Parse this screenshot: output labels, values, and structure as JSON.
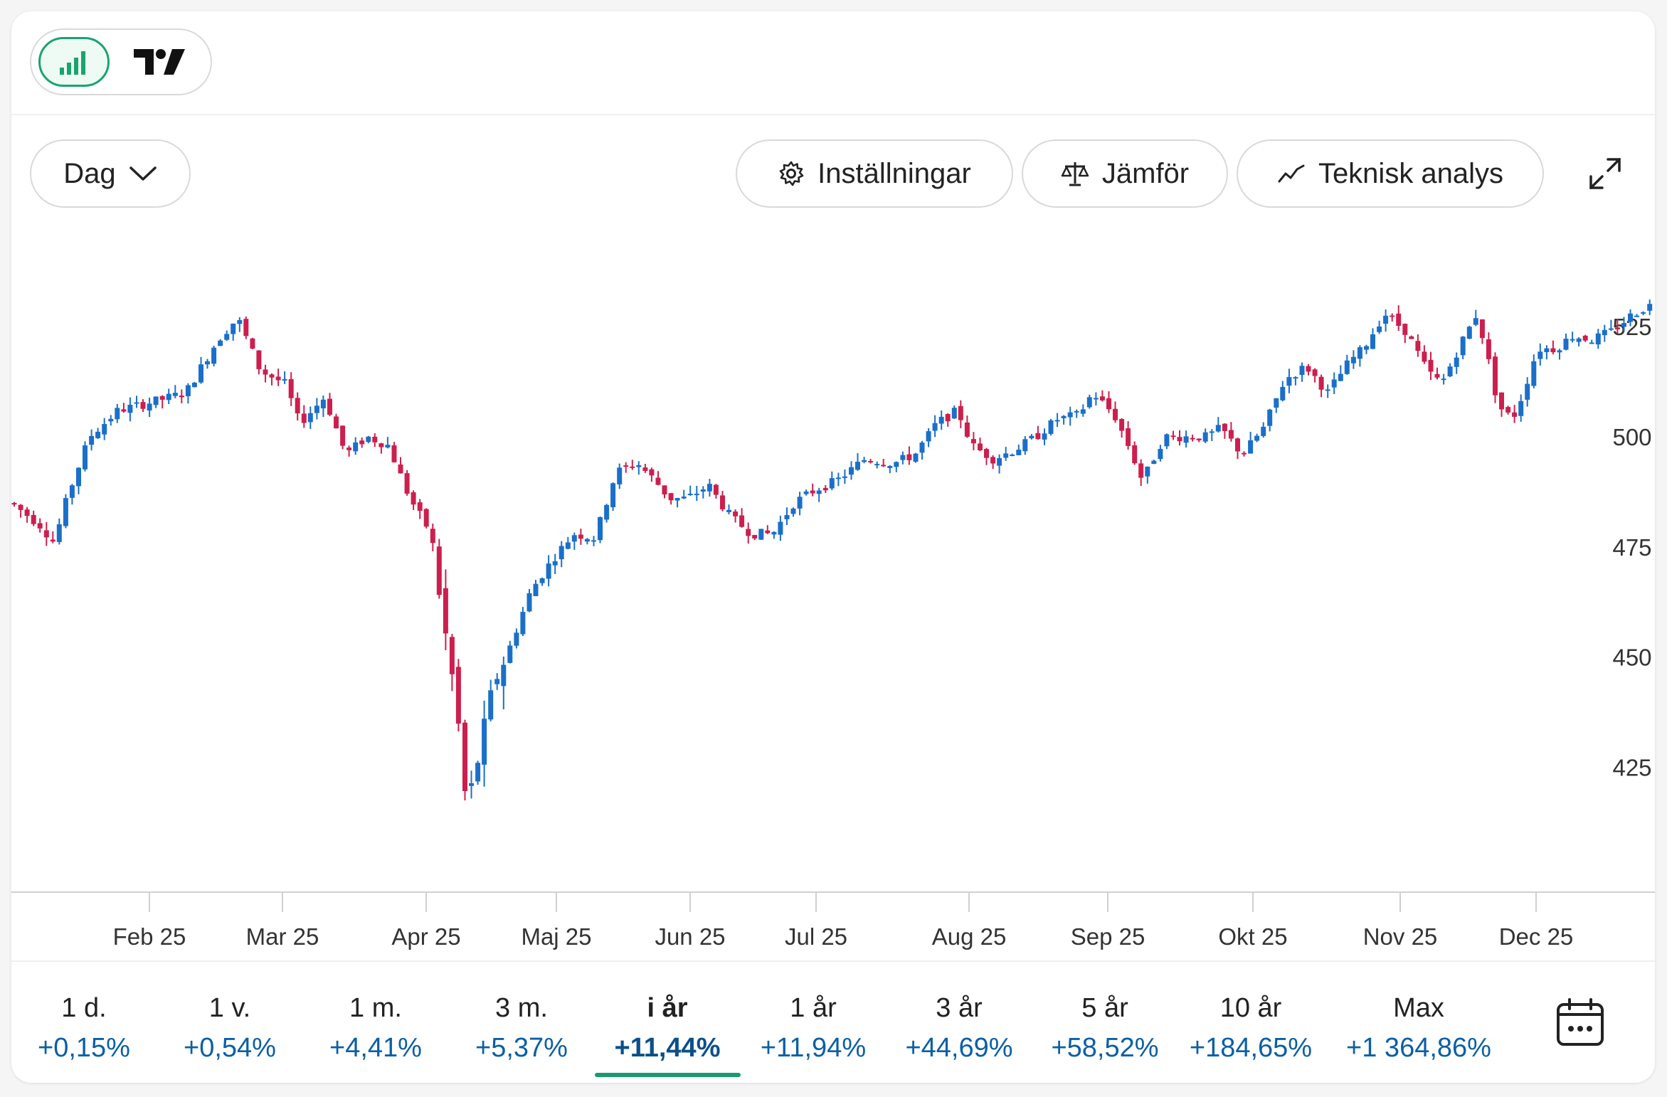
{
  "toolbar": {
    "interval_label": "Dag",
    "settings_label": "Inställningar",
    "compare_label": "Jämför",
    "technical_label": "Teknisk analys"
  },
  "colors": {
    "up": "#1a6fc9",
    "down": "#cc1f4d",
    "accent": "#1a9a72",
    "positive": "#0b5fa5"
  },
  "icons": {
    "chart_view": "bar-chart-icon",
    "tradingview": "tradingview-logo-icon",
    "chevron": "chevron-down-icon",
    "settings": "gear-icon",
    "compare": "scale-icon",
    "technical": "trend-line-icon",
    "expand": "expand-icon",
    "calendar": "calendar-icon"
  },
  "periods": [
    {
      "label": "1 d.",
      "change": "+0,15%",
      "active": false
    },
    {
      "label": "1 v.",
      "change": "+0,54%",
      "active": false
    },
    {
      "label": "1 m.",
      "change": "+4,41%",
      "active": false
    },
    {
      "label": "3 m.",
      "change": "+5,37%",
      "active": false
    },
    {
      "label": "i år",
      "change": "+11,44%",
      "active": true
    },
    {
      "label": "1 år",
      "change": "+11,94%",
      "active": false
    },
    {
      "label": "3 år",
      "change": "+44,69%",
      "active": false
    },
    {
      "label": "5 år",
      "change": "+58,52%",
      "active": false
    },
    {
      "label": "10 år",
      "change": "+184,65%",
      "active": false
    },
    {
      "label": "Max",
      "change": "+1 364,86%",
      "active": false
    }
  ],
  "chart_data": {
    "type": "candlestick",
    "x_tick_labels": [
      "Feb 25",
      "Mar 25",
      "Apr 25",
      "Maj 25",
      "Jun 25",
      "Jul 25",
      "Aug 25",
      "Sep 25",
      "Okt 25",
      "Nov 25",
      "Dec 25"
    ],
    "y_ticks": [
      425,
      450,
      475,
      500,
      525
    ],
    "ylim": [
      405,
      550
    ],
    "grid": false,
    "y_axis_position": "right",
    "approx_close_path": [
      {
        "month": "Jan 25",
        "close": 485
      },
      {
        "month": "Feb 25",
        "close": 508
      },
      {
        "month": "Feb 25 peak",
        "close": 525
      },
      {
        "month": "Mar 25",
        "close": 505
      },
      {
        "month": "Mar 25 end",
        "close": 480
      },
      {
        "month": "Apr 25 low",
        "close": 412
      },
      {
        "month": "Maj 25",
        "close": 476
      },
      {
        "month": "Jun 25",
        "close": 488
      },
      {
        "month": "Jul 25",
        "close": 488
      },
      {
        "month": "Aug 25",
        "close": 507
      },
      {
        "month": "Sep 25",
        "close": 503
      },
      {
        "month": "Okt 25",
        "close": 515
      },
      {
        "month": "Nov 25",
        "close": 528
      },
      {
        "month": "Nov 25 low",
        "close": 502
      },
      {
        "month": "Dec 25",
        "close": 523
      },
      {
        "month": "last",
        "close": 528
      }
    ]
  }
}
